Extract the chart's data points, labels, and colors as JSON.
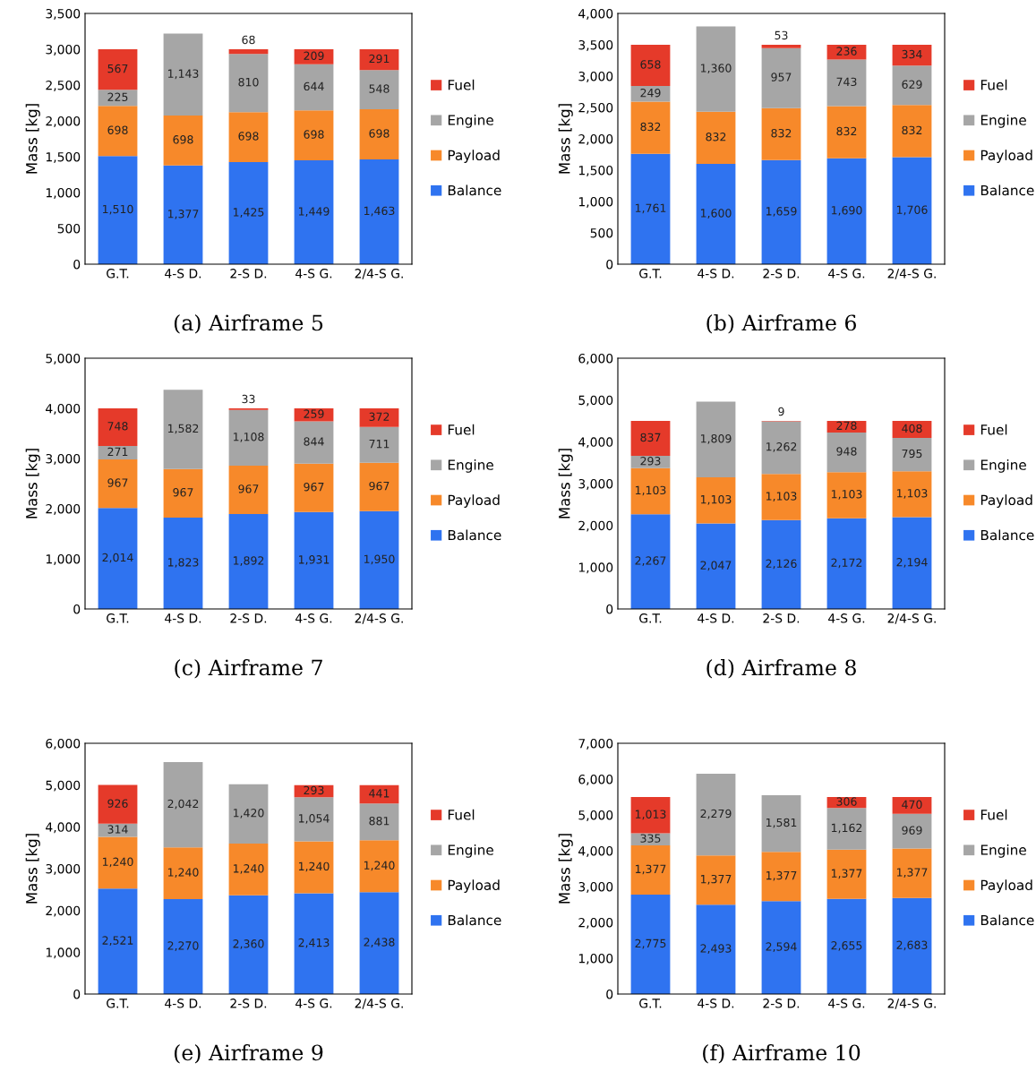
{
  "chart_data": [
    {
      "type": "bar",
      "stacked": true,
      "title": "(a) Airframe 5",
      "ylabel": "Mass [kg]",
      "categories": [
        "G.T.",
        "4-S D.",
        "2-S D.",
        "4-S G.",
        "2/4-S G."
      ],
      "ylim": [
        0,
        3500
      ],
      "yticks": [
        0,
        500,
        {
          "value": 1000,
          "label": "1,000"
        },
        {
          "value": 1500,
          "label": "1,500"
        },
        {
          "value": 2000,
          "label": "2,000"
        },
        {
          "value": 2500,
          "label": "2,500"
        },
        {
          "value": 3000,
          "label": "3,000"
        },
        {
          "value": 3500,
          "label": "3,500"
        }
      ],
      "grid": false,
      "legend": "right",
      "series": [
        {
          "name": "Balance",
          "color": "#2f73f0",
          "values": [
            1510,
            1377,
            1425,
            1449,
            1463
          ],
          "value_labels": [
            "1,510",
            "1,377",
            "1,425",
            "1,449",
            "1,463"
          ]
        },
        {
          "name": "Payload",
          "color": "#f7892a",
          "values": [
            698,
            698,
            698,
            698,
            698
          ],
          "value_labels": [
            "698",
            "698",
            "698",
            "698",
            "698"
          ]
        },
        {
          "name": "Engine",
          "color": "#a6a6a6",
          "values": [
            225,
            1143,
            810,
            644,
            548
          ],
          "value_labels": [
            "225",
            "1,143",
            "810",
            "644",
            "548"
          ]
        },
        {
          "name": "Fuel",
          "color": "#e53a2a",
          "values": [
            567,
            null,
            68,
            209,
            291
          ],
          "value_labels": [
            "567",
            null,
            "68",
            "209",
            "291"
          ]
        }
      ]
    },
    {
      "type": "bar",
      "stacked": true,
      "title": "(b) Airframe 6",
      "ylabel": "Mass [kg]",
      "categories": [
        "G.T.",
        "4-S D.",
        "2-S D.",
        "4-S G.",
        "2/4-S G."
      ],
      "ylim": [
        0,
        4000
      ],
      "yticks": [
        0,
        500,
        {
          "value": 1000,
          "label": "1,000"
        },
        {
          "value": 1500,
          "label": "1,500"
        },
        {
          "value": 2000,
          "label": "2,000"
        },
        {
          "value": 2500,
          "label": "2,500"
        },
        {
          "value": 3000,
          "label": "3,000"
        },
        {
          "value": 3500,
          "label": "3,500"
        },
        {
          "value": 4000,
          "label": "4,000"
        }
      ],
      "grid": false,
      "legend": "right",
      "series": [
        {
          "name": "Balance",
          "color": "#2f73f0",
          "values": [
            1761,
            1600,
            1659,
            1690,
            1706
          ],
          "value_labels": [
            "1,761",
            "1,600",
            "1,659",
            "1,690",
            "1,706"
          ]
        },
        {
          "name": "Payload",
          "color": "#f7892a",
          "values": [
            832,
            832,
            832,
            832,
            832
          ],
          "value_labels": [
            "832",
            "832",
            "832",
            "832",
            "832"
          ]
        },
        {
          "name": "Engine",
          "color": "#a6a6a6",
          "values": [
            249,
            1360,
            957,
            743,
            629
          ],
          "value_labels": [
            "249",
            "1,360",
            "957",
            "743",
            "629"
          ]
        },
        {
          "name": "Fuel",
          "color": "#e53a2a",
          "values": [
            658,
            null,
            53,
            236,
            334
          ],
          "value_labels": [
            "658",
            null,
            "53",
            "236",
            "334"
          ]
        }
      ]
    },
    {
      "type": "bar",
      "stacked": true,
      "title": "(c) Airframe 7",
      "ylabel": "Mass [kg]",
      "categories": [
        "G.T.",
        "4-S D.",
        "2-S D.",
        "4-S G.",
        "2/4-S G."
      ],
      "ylim": [
        0,
        5000
      ],
      "yticks": [
        0,
        {
          "value": 1000,
          "label": "1,000"
        },
        {
          "value": 2000,
          "label": "2,000"
        },
        {
          "value": 3000,
          "label": "3,000"
        },
        {
          "value": 4000,
          "label": "4,000"
        },
        {
          "value": 5000,
          "label": "5,000"
        }
      ],
      "grid": false,
      "legend": "right",
      "series": [
        {
          "name": "Balance",
          "color": "#2f73f0",
          "values": [
            2014,
            1823,
            1892,
            1931,
            1950
          ],
          "value_labels": [
            "2,014",
            "1,823",
            "1,892",
            "1,931",
            "1,950"
          ]
        },
        {
          "name": "Payload",
          "color": "#f7892a",
          "values": [
            967,
            967,
            967,
            967,
            967
          ],
          "value_labels": [
            "967",
            "967",
            "967",
            "967",
            "967"
          ]
        },
        {
          "name": "Engine",
          "color": "#a6a6a6",
          "values": [
            271,
            1582,
            1108,
            844,
            711
          ],
          "value_labels": [
            "271",
            "1,582",
            "1,108",
            "844",
            "711"
          ]
        },
        {
          "name": "Fuel",
          "color": "#e53a2a",
          "values": [
            748,
            null,
            33,
            259,
            372
          ],
          "value_labels": [
            "748",
            null,
            "33",
            "259",
            "372"
          ]
        }
      ]
    },
    {
      "type": "bar",
      "stacked": true,
      "title": "(d) Airframe 8",
      "ylabel": "Mass [kg]",
      "categories": [
        "G.T.",
        "4-S D.",
        "2-S D.",
        "4-S G.",
        "2/4-S G."
      ],
      "ylim": [
        0,
        6000
      ],
      "yticks": [
        0,
        {
          "value": 1000,
          "label": "1,000"
        },
        {
          "value": 2000,
          "label": "2,000"
        },
        {
          "value": 3000,
          "label": "3,000"
        },
        {
          "value": 4000,
          "label": "4,000"
        },
        {
          "value": 5000,
          "label": "5,000"
        },
        {
          "value": 6000,
          "label": "6,000"
        }
      ],
      "grid": false,
      "legend": "right",
      "series": [
        {
          "name": "Balance",
          "color": "#2f73f0",
          "values": [
            2267,
            2047,
            2126,
            2172,
            2194
          ],
          "value_labels": [
            "2,267",
            "2,047",
            "2,126",
            "2,172",
            "2,194"
          ]
        },
        {
          "name": "Payload",
          "color": "#f7892a",
          "values": [
            1103,
            1103,
            1103,
            1103,
            1103
          ],
          "value_labels": [
            "1,103",
            "1,103",
            "1,103",
            "1,103",
            "1,103"
          ]
        },
        {
          "name": "Engine",
          "color": "#a6a6a6",
          "values": [
            293,
            1809,
            1262,
            948,
            795
          ],
          "value_labels": [
            "293",
            "1,809",
            "1,262",
            "948",
            "795"
          ]
        },
        {
          "name": "Fuel",
          "color": "#e53a2a",
          "values": [
            837,
            null,
            9,
            278,
            408
          ],
          "value_labels": [
            "837",
            null,
            "9",
            "278",
            "408"
          ]
        }
      ]
    },
    {
      "type": "bar",
      "stacked": true,
      "title": "(e) Airframe 9",
      "ylabel": "Mass [kg]",
      "categories": [
        "G.T.",
        "4-S D.",
        "2-S D.",
        "4-S G.",
        "2/4-S G."
      ],
      "ylim": [
        0,
        6000
      ],
      "yticks": [
        0,
        {
          "value": 1000,
          "label": "1,000"
        },
        {
          "value": 2000,
          "label": "2,000"
        },
        {
          "value": 3000,
          "label": "3,000"
        },
        {
          "value": 4000,
          "label": "4,000"
        },
        {
          "value": 5000,
          "label": "5,000"
        },
        {
          "value": 6000,
          "label": "6,000"
        }
      ],
      "grid": false,
      "legend": "right",
      "series": [
        {
          "name": "Balance",
          "color": "#2f73f0",
          "values": [
            2521,
            2270,
            2360,
            2413,
            2438
          ],
          "value_labels": [
            "2,521",
            "2,270",
            "2,360",
            "2,413",
            "2,438"
          ]
        },
        {
          "name": "Payload",
          "color": "#f7892a",
          "values": [
            1240,
            1240,
            1240,
            1240,
            1240
          ],
          "value_labels": [
            "1,240",
            "1,240",
            "1,240",
            "1,240",
            "1,240"
          ]
        },
        {
          "name": "Engine",
          "color": "#a6a6a6",
          "values": [
            314,
            2042,
            1420,
            1054,
            881
          ],
          "value_labels": [
            "314",
            "2,042",
            "1,420",
            "1,054",
            "881"
          ]
        },
        {
          "name": "Fuel",
          "color": "#e53a2a",
          "values": [
            926,
            null,
            null,
            293,
            441
          ],
          "value_labels": [
            "926",
            null,
            null,
            "293",
            "441"
          ]
        }
      ]
    },
    {
      "type": "bar",
      "stacked": true,
      "title": "(f) Airframe 10",
      "ylabel": "Mass [kg]",
      "categories": [
        "G.T.",
        "4-S D.",
        "2-S D.",
        "4-S G.",
        "2/4-S G."
      ],
      "ylim": [
        0,
        7000
      ],
      "yticks": [
        0,
        {
          "value": 1000,
          "label": "1,000"
        },
        {
          "value": 2000,
          "label": "2,000"
        },
        {
          "value": 3000,
          "label": "3,000"
        },
        {
          "value": 4000,
          "label": "4,000"
        },
        {
          "value": 5000,
          "label": "5,000"
        },
        {
          "value": 6000,
          "label": "6,000"
        },
        {
          "value": 7000,
          "label": "7,000"
        }
      ],
      "grid": false,
      "legend": "right",
      "series": [
        {
          "name": "Balance",
          "color": "#2f73f0",
          "values": [
            2775,
            2493,
            2594,
            2655,
            2683
          ],
          "value_labels": [
            "2,775",
            "2,493",
            "2,594",
            "2,655",
            "2,683"
          ]
        },
        {
          "name": "Payload",
          "color": "#f7892a",
          "values": [
            1377,
            1377,
            1377,
            1377,
            1377
          ],
          "value_labels": [
            "1,377",
            "1,377",
            "1,377",
            "1,377",
            "1,377"
          ]
        },
        {
          "name": "Engine",
          "color": "#a6a6a6",
          "values": [
            335,
            2279,
            1581,
            1162,
            969
          ],
          "value_labels": [
            "335",
            "2,279",
            "1,581",
            "1,162",
            "969"
          ]
        },
        {
          "name": "Fuel",
          "color": "#e53a2a",
          "values": [
            1013,
            null,
            null,
            306,
            470
          ],
          "value_labels": [
            "1,013",
            null,
            null,
            "306",
            "470"
          ]
        }
      ]
    }
  ]
}
